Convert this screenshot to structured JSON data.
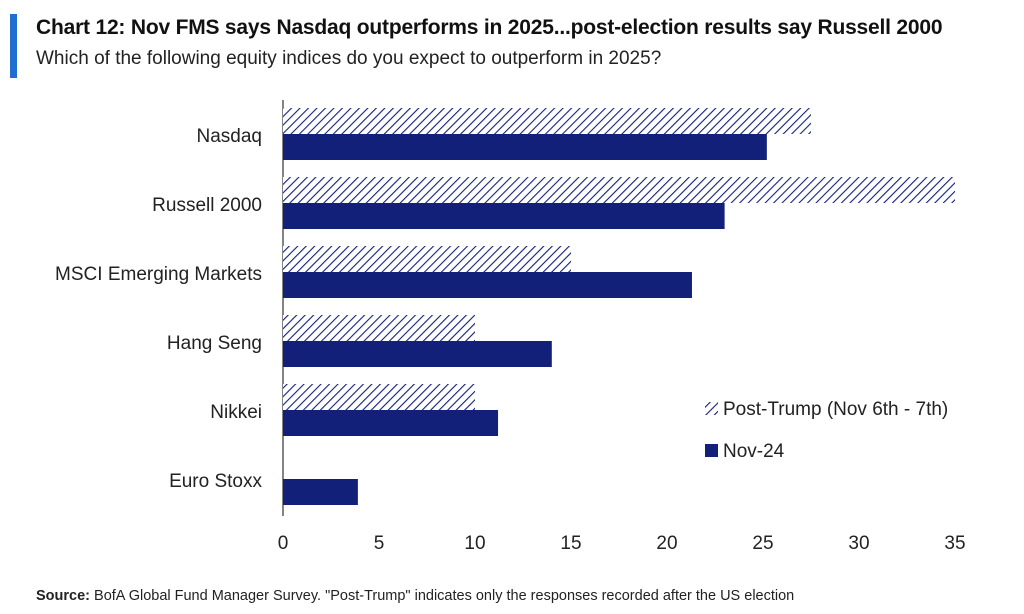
{
  "header": {
    "title": "Chart 12: Nov FMS says Nasdaq outperforms in 2025...post-election results say Russell 2000",
    "subtitle": "Which of the following equity indices do you expect to outperform in 2025?"
  },
  "footer": {
    "source_label": "Source:",
    "source_text": " BofA Global Fund Manager Survey. \"Post-Trump\" indicates only the responses recorded after the US election"
  },
  "colors": {
    "accent": "#1f6fd1",
    "navy": "#12207a"
  },
  "chart_data": {
    "type": "bar",
    "orientation": "horizontal",
    "categories": [
      "Nasdaq",
      "Russell 2000",
      "MSCI Emerging Markets",
      "Hang Seng",
      "Nikkei",
      "Euro Stoxx"
    ],
    "series": [
      {
        "name": "Post-Trump (Nov 6th - 7th)",
        "values": [
          27.5,
          35,
          15,
          10,
          10,
          0
        ],
        "pattern": "hatched",
        "color": "#12207a"
      },
      {
        "name": "Nov-24",
        "values": [
          25.2,
          23,
          21.3,
          14,
          11.2,
          3.9
        ],
        "pattern": "solid",
        "color": "#12207a"
      }
    ],
    "xlim": [
      0,
      35
    ],
    "xticks": [
      0,
      5,
      10,
      15,
      20,
      25,
      30,
      35
    ],
    "xlabel": "",
    "ylabel": "",
    "grid": false,
    "legend_position": "bottom-right"
  }
}
